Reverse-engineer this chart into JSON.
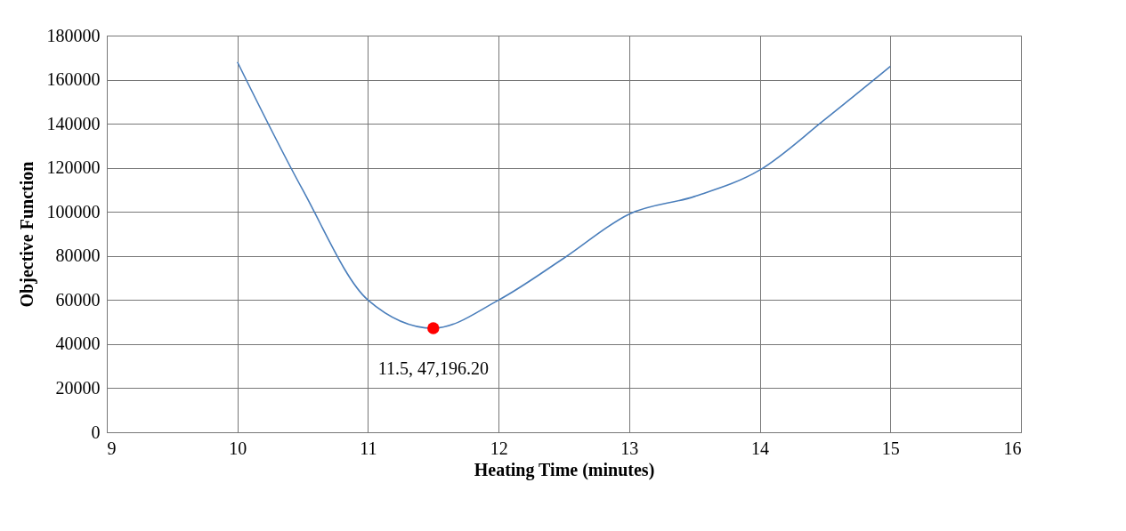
{
  "chart_data": {
    "type": "line",
    "xlabel": "Heating Time (minutes)",
    "ylabel": "Objective Function",
    "series": [
      {
        "color": "#4a7ebb",
        "x": [
          10,
          10.5,
          11,
          11.5,
          12,
          12.5,
          13,
          13.5,
          14,
          14.5,
          15
        ],
        "values": [
          168000,
          110000,
          60000,
          47196.2,
          60000,
          79000,
          99000,
          107000,
          119000,
          142000,
          166000
        ]
      },
      {
        "type": "scatter",
        "marker": "circle",
        "color": "#ff0000",
        "x": [
          11.5
        ],
        "values": [
          47196.2
        ]
      }
    ],
    "annotations": [
      {
        "text": "11.5, 47,196.20",
        "x": 11.5,
        "y": 47196.2
      }
    ],
    "xlim": [
      9,
      16
    ],
    "xticks": [
      9,
      10,
      11,
      12,
      13,
      14,
      15,
      16
    ],
    "ylim": [
      0,
      180000
    ],
    "yticks": [
      0,
      20000,
      40000,
      60000,
      80000,
      100000,
      120000,
      140000,
      160000,
      180000
    ],
    "grid": true,
    "line_style": "solid"
  }
}
